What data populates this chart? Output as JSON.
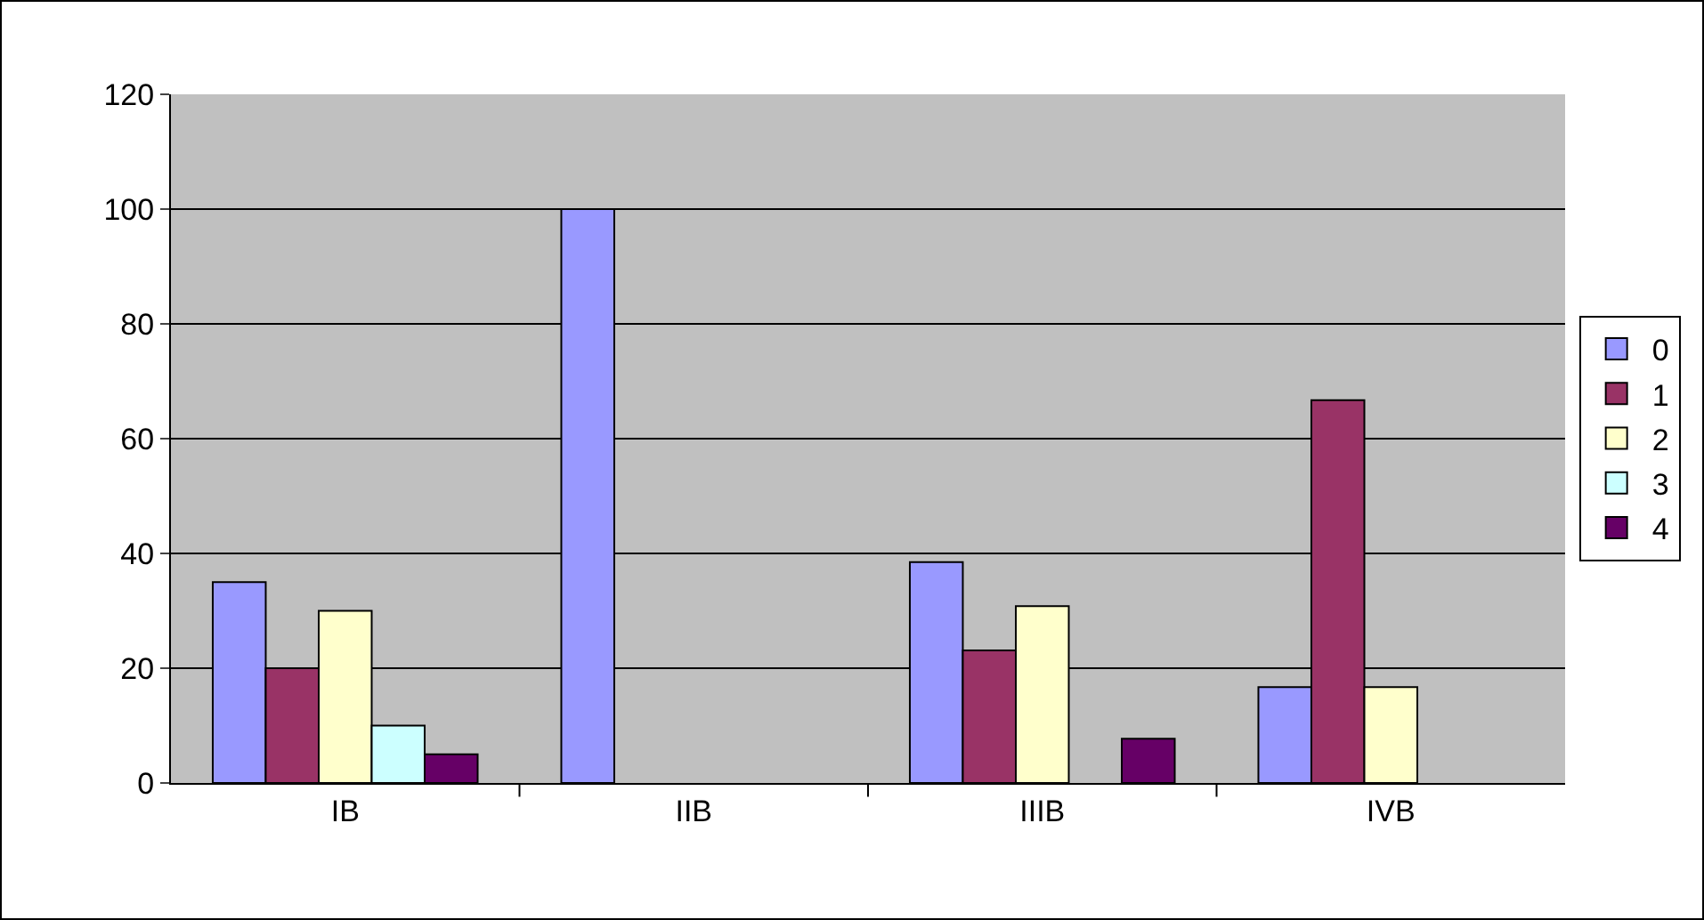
{
  "chart_data": {
    "type": "bar",
    "categories": [
      "IB",
      "IIB",
      "IIIB",
      "IVB"
    ],
    "series": [
      {
        "name": "0",
        "color": "#9999ff",
        "values": [
          35,
          100,
          38.5,
          16.7
        ]
      },
      {
        "name": "1",
        "color": "#993366",
        "values": [
          20,
          null,
          23.1,
          66.7
        ]
      },
      {
        "name": "2",
        "color": "#ffffcc",
        "values": [
          30,
          null,
          30.8,
          16.7
        ]
      },
      {
        "name": "3",
        "color": "#ccffff",
        "values": [
          10,
          null,
          null,
          null
        ]
      },
      {
        "name": "4",
        "color": "#660066",
        "values": [
          5,
          null,
          7.7,
          null
        ]
      }
    ],
    "ylim": [
      0,
      120
    ],
    "yticks": [
      0,
      20,
      40,
      60,
      80,
      100,
      120
    ],
    "grid": "y",
    "legend": "right"
  }
}
